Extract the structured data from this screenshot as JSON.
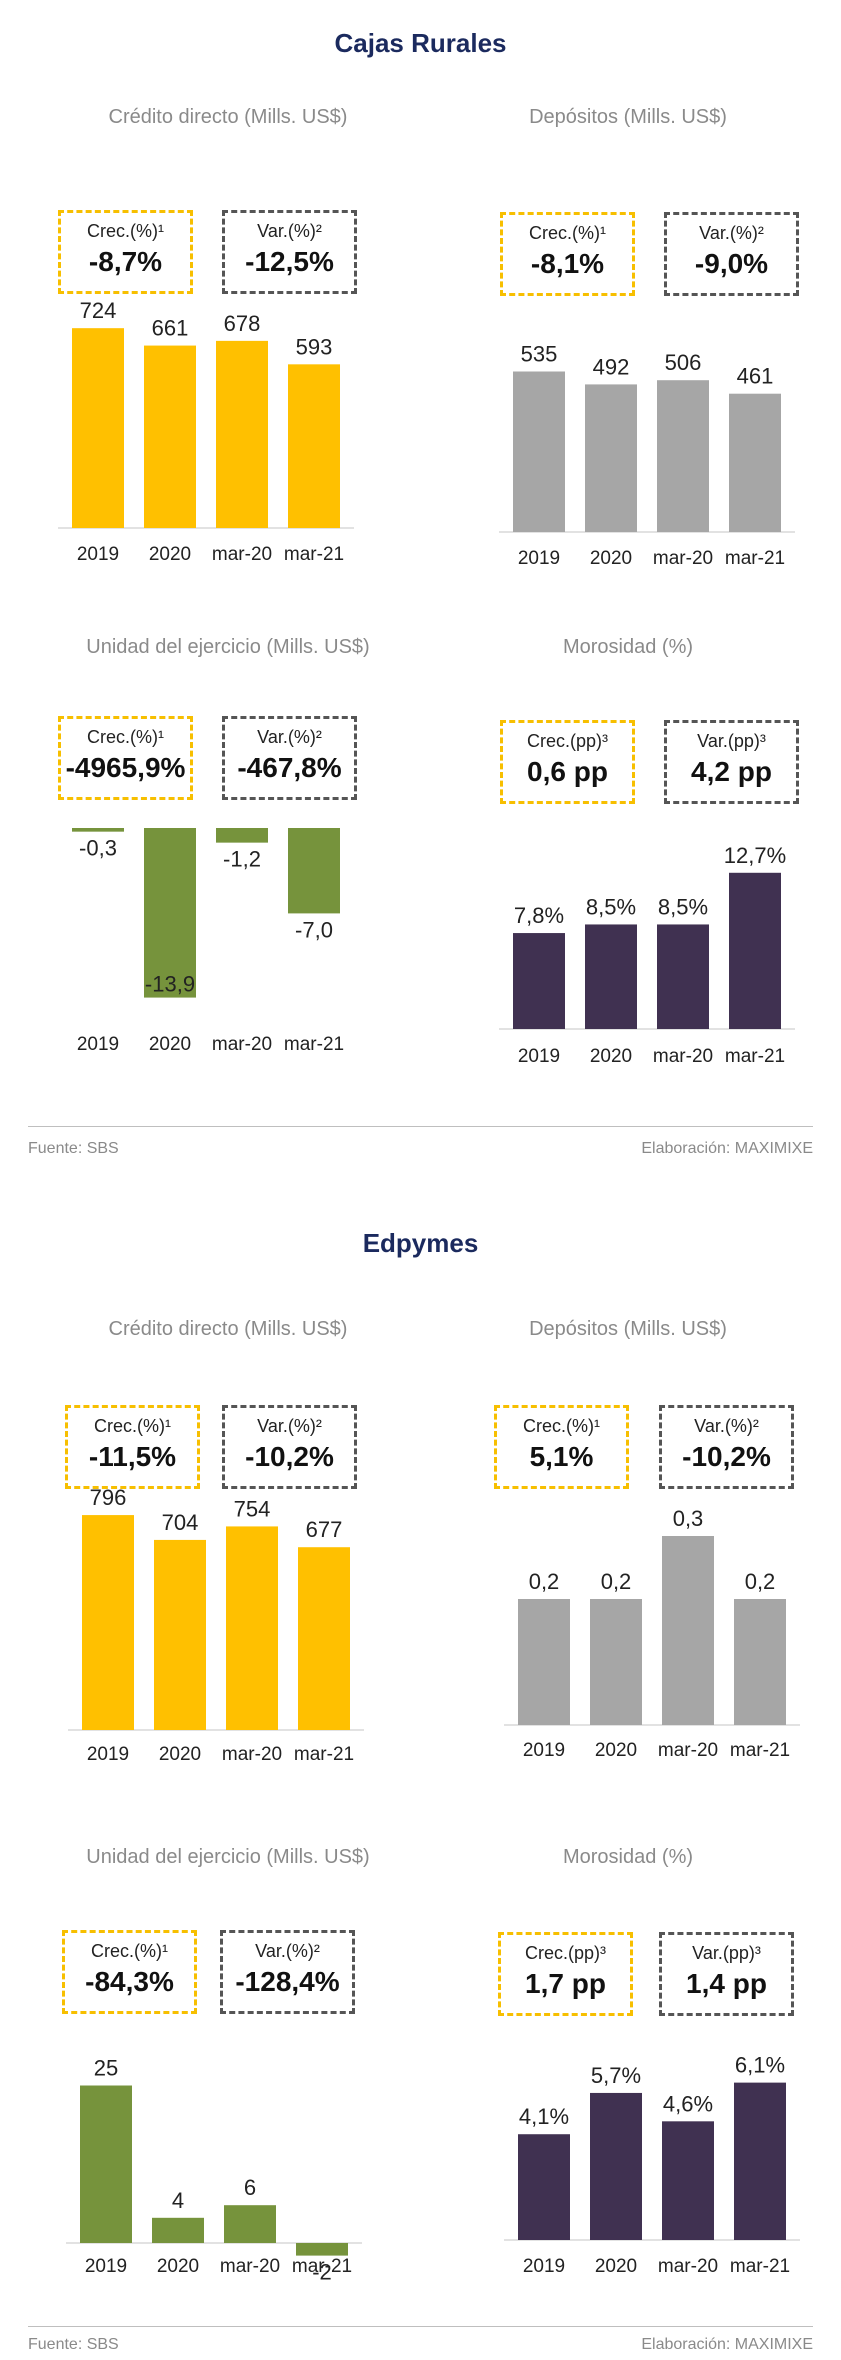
{
  "sections": [
    {
      "title": "Cajas Rurales",
      "source": "Fuente: SBS",
      "credit": "Elaboración: MAXIMIXE",
      "charts": [
        {
          "title": "Crédito directo (Mills. US$)",
          "crec_label": "Crec.(%)¹",
          "crec_value": "-8,7%",
          "var_label": "Var.(%)²",
          "var_value": "-12,5%"
        },
        {
          "title": "Depósitos (Mills. US$)",
          "crec_label": "Crec.(%)¹",
          "crec_value": "-8,1%",
          "var_label": "Var.(%)²",
          "var_value": "-9,0%"
        },
        {
          "title": "Unidad del ejercicio (Mills. US$)",
          "crec_label": "Crec.(%)¹",
          "crec_value": "-4965,9%",
          "var_label": "Var.(%)²",
          "var_value": "-467,8%"
        },
        {
          "title": "Morosidad (%)",
          "crec_label": "Crec.(pp)³",
          "crec_value": "0,6 pp",
          "var_label": "Var.(pp)³",
          "var_value": "4,2 pp"
        }
      ]
    },
    {
      "title": "Edpymes",
      "source": "Fuente: SBS",
      "credit": "Elaboración: MAXIMIXE",
      "charts": [
        {
          "title": "Crédito directo (Mills. US$)",
          "crec_label": "Crec.(%)¹",
          "crec_value": "-11,5%",
          "var_label": "Var.(%)²",
          "var_value": "-10,2%"
        },
        {
          "title": "Depósitos (Mills. US$)",
          "crec_label": "Crec.(%)¹",
          "crec_value": "5,1%",
          "var_label": "Var.(%)²",
          "var_value": "-10,2%"
        },
        {
          "title": "Unidad del ejercicio (Mills. US$)",
          "crec_label": "Crec.(%)¹",
          "crec_value": "-84,3%",
          "var_label": "Var.(%)²",
          "var_value": "-128,4%"
        },
        {
          "title": "Morosidad (%)",
          "crec_label": "Crec.(pp)³",
          "crec_value": "1,7 pp",
          "var_label": "Var.(pp)³",
          "var_value": "1,4 pp"
        }
      ]
    }
  ],
  "chart_data": [
    {
      "type": "bar",
      "title": "Crédito directo (Mills. US$)",
      "categories": [
        "2019",
        "2020",
        "mar-20",
        "mar-21"
      ],
      "values": [
        724,
        661,
        678,
        593
      ],
      "labels": [
        "724",
        "661",
        "678",
        "593"
      ],
      "color": "#ffc000"
    },
    {
      "type": "bar",
      "title": "Depósitos (Mills. US$)",
      "categories": [
        "2019",
        "2020",
        "mar-20",
        "mar-21"
      ],
      "values": [
        535,
        492,
        506,
        461
      ],
      "labels": [
        "535",
        "492",
        "506",
        "461"
      ],
      "color": "#a6a6a6"
    },
    {
      "type": "bar",
      "title": "Unidad del ejercicio (Mills. US$)",
      "categories": [
        "2019",
        "2020",
        "mar-20",
        "mar-21"
      ],
      "values": [
        -0.3,
        -13.9,
        -1.2,
        -7.0
      ],
      "labels": [
        "-0,3",
        "-13,9",
        "-1,2",
        "-7,0"
      ],
      "color": "#76933c"
    },
    {
      "type": "bar",
      "title": "Morosidad (%)",
      "categories": [
        "2019",
        "2020",
        "mar-20",
        "mar-21"
      ],
      "values": [
        7.8,
        8.5,
        8.5,
        12.7
      ],
      "labels": [
        "7,8%",
        "8,5%",
        "8,5%",
        "12,7%"
      ],
      "color": "#403151"
    },
    {
      "type": "bar",
      "title": "Crédito directo (Mills. US$)",
      "categories": [
        "2019",
        "2020",
        "mar-20",
        "mar-21"
      ],
      "values": [
        796,
        704,
        754,
        677
      ],
      "labels": [
        "796",
        "704",
        "754",
        "677"
      ],
      "color": "#ffc000"
    },
    {
      "type": "bar",
      "title": "Depósitos (Mills. US$)",
      "categories": [
        "2019",
        "2020",
        "mar-20",
        "mar-21"
      ],
      "values": [
        0.2,
        0.2,
        0.3,
        0.2
      ],
      "labels": [
        "0,2",
        "0,2",
        "0,3",
        "0,2"
      ],
      "color": "#a6a6a6"
    },
    {
      "type": "bar",
      "title": "Unidad del ejercicio (Mills. US$)",
      "categories": [
        "2019",
        "2020",
        "mar-20",
        "mar-21"
      ],
      "values": [
        25,
        4,
        6,
        -2
      ],
      "labels": [
        "25",
        "4",
        "6",
        "-2"
      ],
      "color": "#76933c"
    },
    {
      "type": "bar",
      "title": "Morosidad (%)",
      "categories": [
        "2019",
        "2020",
        "mar-20",
        "mar-21"
      ],
      "values": [
        4.1,
        5.7,
        4.6,
        6.1
      ],
      "labels": [
        "4,1%",
        "5,7%",
        "4,6%",
        "6,1%"
      ],
      "color": "#403151"
    }
  ]
}
